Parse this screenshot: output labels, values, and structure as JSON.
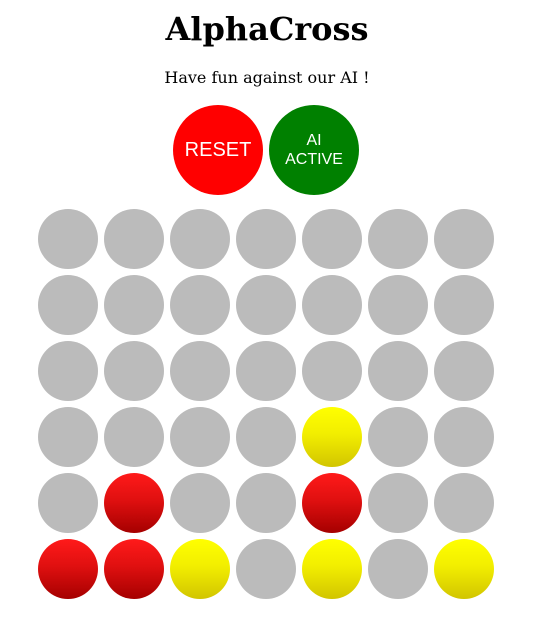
{
  "header": {
    "title": "AlphaCross",
    "subtitle": "Have fun against our AI !"
  },
  "controls": {
    "reset_label": "RESET",
    "ai_label_line1": "AI",
    "ai_label_line2": "ACTIVE",
    "reset_color": "#ff0000",
    "ai_color": "#008000"
  },
  "board": {
    "columns": 7,
    "rows": 6,
    "empty_color": "#bbbbbb",
    "red_color": "#e01010",
    "yellow_color": "#f2ee00",
    "cells": [
      [
        "empty",
        "empty",
        "empty",
        "empty",
        "empty",
        "empty",
        "empty"
      ],
      [
        "empty",
        "empty",
        "empty",
        "empty",
        "empty",
        "empty",
        "empty"
      ],
      [
        "empty",
        "empty",
        "empty",
        "empty",
        "empty",
        "empty",
        "empty"
      ],
      [
        "empty",
        "empty",
        "empty",
        "empty",
        "yellow",
        "empty",
        "empty"
      ],
      [
        "empty",
        "red",
        "empty",
        "empty",
        "red",
        "empty",
        "empty"
      ],
      [
        "red",
        "red",
        "yellow",
        "empty",
        "yellow",
        "empty",
        "yellow"
      ]
    ]
  }
}
